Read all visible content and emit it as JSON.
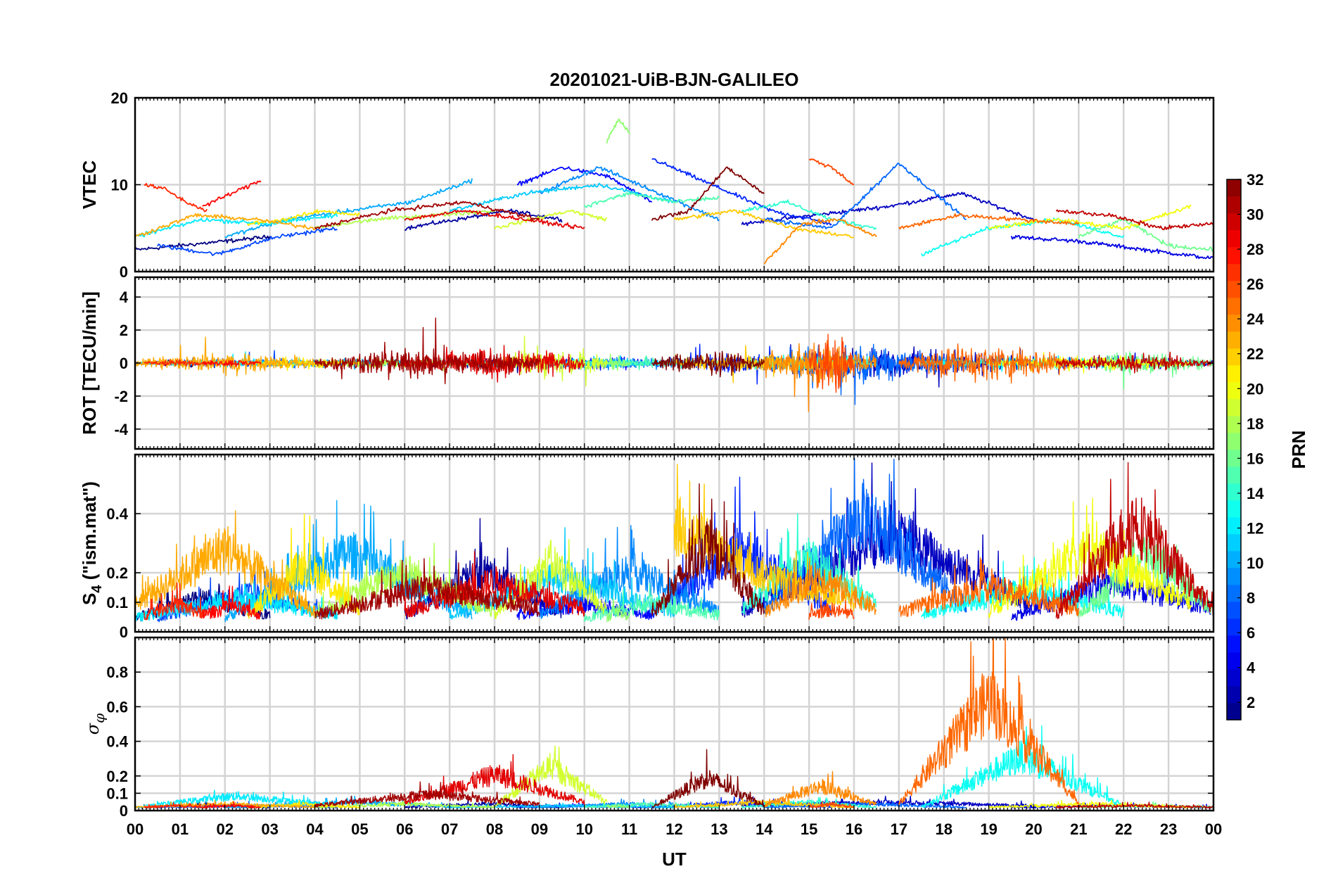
{
  "chart_data": {
    "type": "line",
    "title": "20201021-UiB-BJN-GALILEO",
    "xlabel": "UT",
    "x_ticks": [
      "00",
      "01",
      "02",
      "03",
      "04",
      "05",
      "06",
      "07",
      "08",
      "09",
      "10",
      "11",
      "12",
      "13",
      "14",
      "15",
      "16",
      "17",
      "18",
      "19",
      "20",
      "21",
      "22",
      "23",
      "00"
    ],
    "xlim": [
      0,
      24
    ],
    "colorbar": {
      "label": "PRN",
      "range": [
        1,
        32
      ],
      "ticks": [
        "2",
        "4",
        "6",
        "8",
        "10",
        "12",
        "14",
        "16",
        "18",
        "20",
        "22",
        "24",
        "26",
        "28",
        "30",
        "32"
      ],
      "colormap": "jet",
      "colors": [
        "#00008f",
        "#0000ff",
        "#0080ff",
        "#00ffff",
        "#80ff80",
        "#ffff00",
        "#ff8000",
        "#ff0000",
        "#800000"
      ]
    },
    "panels": [
      {
        "id": "vtec",
        "ylabel": "VTEC",
        "ylim": [
          0,
          20
        ],
        "ytick_values": [
          0,
          10,
          20
        ],
        "ytick_labels": [
          "0",
          "10",
          "20"
        ],
        "kind": "level",
        "grid": true
      },
      {
        "id": "rot",
        "ylabel": "ROT [TECU/min]",
        "ylim": [
          -5.2,
          5.2
        ],
        "ytick_values": [
          -4,
          -2,
          0,
          2,
          4
        ],
        "ytick_labels": [
          "-4",
          "-2",
          "0",
          "2",
          "4"
        ],
        "kind": "noise",
        "grid": true
      },
      {
        "id": "s4",
        "ylabel": "S",
        "ylabel_sub": "4",
        "ylabel_rest": " (\"ism.mat\")",
        "ylim": [
          0,
          0.6
        ],
        "ytick_values": [
          0,
          0.1,
          0.2,
          0.4
        ],
        "ytick_labels": [
          "0",
          "0.1",
          "0.2",
          "0.4"
        ],
        "kind": "positive",
        "grid": true
      },
      {
        "id": "sigphi",
        "ylabel": "σ",
        "ylabel_sub": "φ",
        "ylim": [
          0,
          1
        ],
        "ytick_values": [
          0,
          0.1,
          0.2,
          0.4,
          0.6,
          0.8
        ],
        "ytick_labels": [
          "0",
          "0.1",
          "0.2",
          "0.4",
          "0.6",
          "0.8"
        ],
        "kind": "positive",
        "grid": true
      }
    ],
    "series": [
      {
        "name": "PRN 1",
        "prn": 1,
        "start": 0.0,
        "end": 3.0,
        "vtec": [
          2.5,
          3.0,
          3.5,
          4.0
        ],
        "rot_amp": 0.3,
        "s4": [
          0.05,
          0.12,
          0.06
        ],
        "sigphi": [
          0.02,
          0.03,
          0.02
        ]
      },
      {
        "name": "PRN 2",
        "prn": 2,
        "start": 6.0,
        "end": 9.5,
        "vtec": [
          5.0,
          6.0,
          7.0,
          6.0
        ],
        "rot_amp": 0.4,
        "s4": [
          0.06,
          0.22,
          0.07
        ],
        "sigphi": [
          0.02,
          0.04,
          0.02
        ]
      },
      {
        "name": "PRN 3",
        "prn": 3,
        "start": 13.5,
        "end": 20.0,
        "vtec": [
          5.5,
          6.5,
          7.5,
          9.0,
          6.0
        ],
        "rot_amp": 1.2,
        "s4": [
          0.07,
          0.35,
          0.1
        ],
        "sigphi": [
          0.03,
          0.05,
          0.03
        ]
      },
      {
        "name": "PRN 4",
        "prn": 4,
        "start": 19.5,
        "end": 24.0,
        "vtec": [
          4.0,
          3.5,
          2.5,
          1.5
        ],
        "rot_amp": 0.5,
        "s4": [
          0.05,
          0.18,
          0.08
        ],
        "sigphi": [
          0.02,
          0.03,
          0.02
        ]
      },
      {
        "name": "PRN 5",
        "prn": 5,
        "start": 8.5,
        "end": 11.5,
        "vtec": [
          10.0,
          12.0,
          11.0,
          8.0
        ],
        "rot_amp": 0.6,
        "s4": [
          0.06,
          0.1,
          0.06
        ],
        "sigphi": [
          0.02,
          0.03,
          0.02
        ]
      },
      {
        "name": "PRN 6",
        "prn": 6,
        "start": 11.5,
        "end": 15.5,
        "vtec": [
          13.0,
          10.0,
          7.0,
          5.5
        ],
        "rot_amp": 0.8,
        "s4": [
          0.07,
          0.3,
          0.08
        ],
        "sigphi": [
          0.02,
          0.05,
          0.02
        ]
      },
      {
        "name": "PRN 7",
        "prn": 7,
        "start": 0.5,
        "end": 4.5,
        "vtec": [
          3.0,
          2.0,
          4.0,
          5.0
        ],
        "rot_amp": 0.4,
        "s4": [
          0.05,
          0.14,
          0.06
        ],
        "sigphi": [
          0.02,
          0.03,
          0.02
        ]
      },
      {
        "name": "PRN 8",
        "prn": 8,
        "start": 14.0,
        "end": 18.5,
        "vtec": [
          6.0,
          5.0,
          12.5,
          6.0
        ],
        "rot_amp": 1.5,
        "s4": [
          0.08,
          0.42,
          0.09
        ],
        "sigphi": [
          0.02,
          0.04,
          0.02
        ]
      },
      {
        "name": "PRN 9",
        "prn": 9,
        "start": 9.0,
        "end": 13.0,
        "vtec": [
          9.0,
          12.0,
          9.0,
          6.0
        ],
        "rot_amp": 0.5,
        "s4": [
          0.06,
          0.22,
          0.07
        ],
        "sigphi": [
          0.02,
          0.04,
          0.02
        ]
      },
      {
        "name": "PRN 10",
        "prn": 10,
        "start": 2.0,
        "end": 7.5,
        "vtec": [
          4.0,
          6.0,
          7.0,
          8.0,
          10.5
        ],
        "rot_amp": 0.4,
        "s4": [
          0.05,
          0.28,
          0.06
        ],
        "sigphi": [
          0.02,
          0.05,
          0.02
        ]
      },
      {
        "name": "PRN 11",
        "prn": 11,
        "start": 7.0,
        "end": 12.0,
        "vtec": [
          7.0,
          9.0,
          10.0,
          8.0
        ],
        "rot_amp": 0.5,
        "s4": [
          0.06,
          0.2,
          0.07
        ],
        "sigphi": [
          0.02,
          0.03,
          0.02
        ]
      },
      {
        "name": "PRN 12",
        "prn": 12,
        "start": 0.0,
        "end": 4.5,
        "vtec": [
          4.0,
          6.0,
          5.5,
          6.5
        ],
        "rot_amp": 0.3,
        "s4": [
          0.05,
          0.12,
          0.06
        ],
        "sigphi": [
          0.02,
          0.09,
          0.03
        ]
      },
      {
        "name": "PRN 13",
        "prn": 13,
        "start": 17.5,
        "end": 22.0,
        "vtec": [
          2.0,
          5.0,
          6.0,
          4.0
        ],
        "rot_amp": 0.6,
        "s4": [
          0.06,
          0.15,
          0.07
        ],
        "sigphi": [
          0.02,
          0.33,
          0.03
        ]
      },
      {
        "name": "PRN 14",
        "prn": 14,
        "start": 13.5,
        "end": 16.5,
        "vtec": [
          7.0,
          8.0,
          6.0,
          5.0
        ],
        "rot_amp": 0.8,
        "s4": [
          0.08,
          0.26,
          0.09
        ],
        "sigphi": [
          0.02,
          0.05,
          0.02
        ]
      },
      {
        "name": "PRN 15",
        "prn": 15,
        "start": 10.0,
        "end": 13.0,
        "vtec": [
          7.5,
          9.0,
          8.0,
          8.5
        ],
        "rot_amp": 0.5,
        "s4": [
          0.05,
          0.1,
          0.06
        ],
        "sigphi": [
          0.02,
          0.04,
          0.02
        ]
      },
      {
        "name": "PRN 16",
        "prn": 16,
        "start": 21.0,
        "end": 24.0,
        "vtec": [
          4.0,
          6.0,
          3.0,
          2.5
        ],
        "rot_amp": 1.0,
        "s4": [
          0.06,
          0.28,
          0.08
        ],
        "sigphi": [
          0.02,
          0.03,
          0.02
        ]
      },
      {
        "name": "PRN 17",
        "prn": 17,
        "start": 10.5,
        "end": 11.0,
        "vtec": [
          15.0,
          17.5,
          16.0
        ],
        "rot_amp": 0.6,
        "s4": [
          0.05,
          0.08,
          0.05
        ],
        "sigphi": [
          0.02,
          0.03,
          0.02
        ]
      },
      {
        "name": "PRN 18",
        "prn": 18,
        "start": 4.0,
        "end": 8.0,
        "vtec": [
          5.0,
          6.0,
          6.5,
          7.0
        ],
        "rot_amp": 0.4,
        "s4": [
          0.06,
          0.22,
          0.07
        ],
        "sigphi": [
          0.02,
          0.04,
          0.02
        ]
      },
      {
        "name": "PRN 19",
        "prn": 19,
        "start": 8.0,
        "end": 10.5,
        "vtec": [
          5.0,
          6.0,
          7.0,
          6.0
        ],
        "rot_amp": 1.2,
        "s4": [
          0.06,
          0.25,
          0.08
        ],
        "sigphi": [
          0.03,
          0.27,
          0.05
        ]
      },
      {
        "name": "PRN 20",
        "prn": 20,
        "start": 19.0,
        "end": 23.5,
        "vtec": [
          5.0,
          6.0,
          5.0,
          7.5
        ],
        "rot_amp": 0.6,
        "s4": [
          0.07,
          0.3,
          0.1
        ],
        "sigphi": [
          0.02,
          0.04,
          0.02
        ]
      },
      {
        "name": "PRN 21",
        "prn": 21,
        "start": 2.5,
        "end": 5.0,
        "vtec": [
          5.5,
          6.0,
          7.0,
          6.5
        ],
        "rot_amp": 0.5,
        "s4": [
          0.06,
          0.24,
          0.08
        ],
        "sigphi": [
          0.02,
          0.04,
          0.02
        ]
      },
      {
        "name": "PRN 22",
        "prn": 22,
        "start": 12.0,
        "end": 16.0,
        "vtec": [
          6.0,
          7.0,
          5.0,
          4.0
        ],
        "rot_amp": 0.8,
        "s4": [
          0.38,
          0.2,
          0.1
        ],
        "sigphi": [
          0.02,
          0.05,
          0.02
        ]
      },
      {
        "name": "PRN 23",
        "prn": 23,
        "start": 0.0,
        "end": 4.0,
        "vtec": [
          4.0,
          6.5,
          6.0,
          5.0
        ],
        "rot_amp": 0.8,
        "s4": [
          0.1,
          0.3,
          0.07
        ],
        "sigphi": [
          0.02,
          0.04,
          0.02
        ]
      },
      {
        "name": "PRN 24",
        "prn": 24,
        "start": 14.0,
        "end": 16.5,
        "vtec": [
          1.0,
          5.5,
          6.0,
          4.0
        ],
        "rot_amp": 1.8,
        "s4": [
          0.07,
          0.2,
          0.08
        ],
        "sigphi": [
          0.03,
          0.15,
          0.04
        ]
      },
      {
        "name": "PRN 25",
        "prn": 25,
        "start": 17.0,
        "end": 21.0,
        "vtec": [
          5.0,
          6.5,
          6.0,
          5.5
        ],
        "rot_amp": 1.5,
        "s4": [
          0.07,
          0.16,
          0.08
        ],
        "sigphi": [
          0.04,
          0.68,
          0.05
        ]
      },
      {
        "name": "PRN 26",
        "prn": 26,
        "start": 15.0,
        "end": 16.0,
        "vtec": [
          13.0,
          12.0,
          10.0
        ],
        "rot_amp": 2.5,
        "s4": [
          0.06,
          0.08,
          0.06
        ],
        "sigphi": [
          0.02,
          0.04,
          0.02
        ]
      },
      {
        "name": "PRN 27",
        "prn": 27,
        "start": 0.2,
        "end": 1.6,
        "vtec": [
          10.0,
          9.5,
          8.0,
          7.0
        ],
        "rot_amp": 0.3,
        "s4": [
          0.06,
          0.1,
          0.06
        ],
        "sigphi": [
          0.02,
          0.03,
          0.02
        ]
      },
      {
        "name": "PRN 28",
        "prn": 28,
        "start": 1.5,
        "end": 2.8,
        "vtec": [
          7.5,
          9.0,
          10.5
        ],
        "rot_amp": 0.3,
        "s4": [
          0.06,
          0.09,
          0.06
        ],
        "sigphi": [
          0.02,
          0.03,
          0.02
        ]
      },
      {
        "name": "PRN 29",
        "prn": 29,
        "start": 6.0,
        "end": 10.0,
        "vtec": [
          6.0,
          7.0,
          6.0,
          5.0
        ],
        "rot_amp": 1.3,
        "s4": [
          0.07,
          0.18,
          0.08
        ],
        "sigphi": [
          0.04,
          0.22,
          0.05
        ]
      },
      {
        "name": "PRN 30",
        "prn": 30,
        "start": 20.5,
        "end": 24.0,
        "vtec": [
          7.0,
          6.5,
          5.0,
          5.5
        ],
        "rot_amp": 0.7,
        "s4": [
          0.06,
          0.4,
          0.08
        ],
        "sigphi": [
          0.02,
          0.03,
          0.02
        ]
      },
      {
        "name": "PRN 31",
        "prn": 31,
        "start": 4.0,
        "end": 9.0,
        "vtec": [
          5.0,
          7.0,
          8.0,
          6.0
        ],
        "rot_amp": 1.2,
        "s4": [
          0.06,
          0.16,
          0.08
        ],
        "sigphi": [
          0.03,
          0.1,
          0.04
        ]
      },
      {
        "name": "PRN 32",
        "prn": 32,
        "start": 11.5,
        "end": 14.0,
        "vtec": [
          6.0,
          7.0,
          12.0,
          9.0
        ],
        "rot_amp": 1.0,
        "s4": [
          0.06,
          0.32,
          0.07
        ],
        "sigphi": [
          0.02,
          0.2,
          0.03
        ]
      }
    ]
  }
}
